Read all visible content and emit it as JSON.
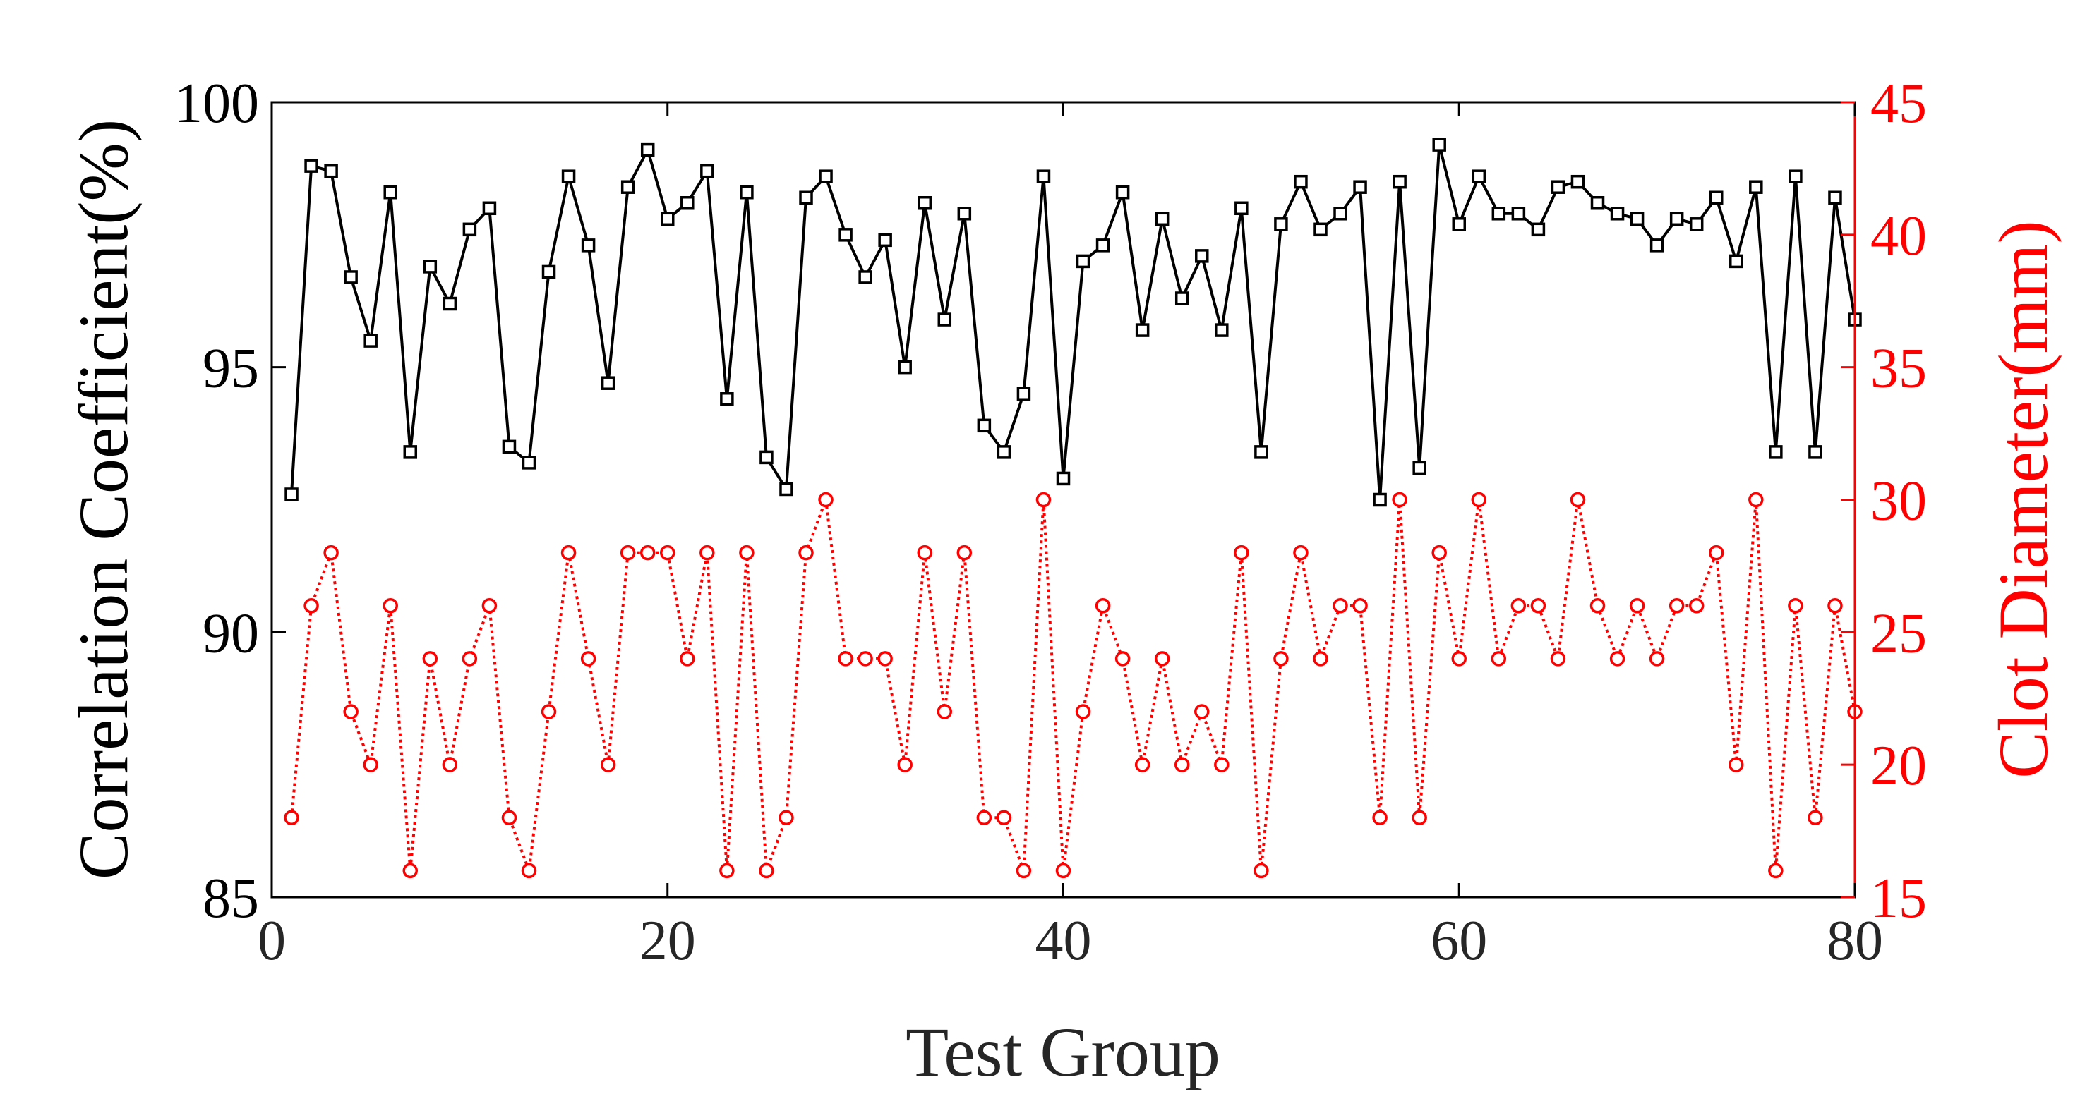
{
  "chart_data": {
    "type": "line",
    "xlabel": "Test Group",
    "ylabel_left": "Correlation Coefficient(%)",
    "ylabel_right": "Clot Diameter(mm)",
    "xlim": [
      0,
      80
    ],
    "ylim_left": [
      85,
      100
    ],
    "ylim_right": [
      15,
      45
    ],
    "x_ticks": [
      "0",
      "20",
      "40",
      "60",
      "80"
    ],
    "y_left_ticks": [
      "85",
      "90",
      "95",
      "100"
    ],
    "y_right_ticks": [
      "15",
      "20",
      "25",
      "30",
      "35",
      "40",
      "45"
    ],
    "x": [
      1,
      2,
      3,
      4,
      5,
      6,
      7,
      8,
      9,
      10,
      11,
      12,
      13,
      14,
      15,
      16,
      17,
      18,
      19,
      20,
      21,
      22,
      23,
      24,
      25,
      26,
      27,
      28,
      29,
      30,
      31,
      32,
      33,
      34,
      35,
      36,
      37,
      38,
      39,
      40,
      41,
      42,
      43,
      44,
      45,
      46,
      47,
      48,
      49,
      50,
      51,
      52,
      53,
      54,
      55,
      56,
      57,
      58,
      59,
      60,
      61,
      62,
      63,
      64,
      65,
      66,
      67,
      68,
      69,
      70,
      71,
      72,
      73,
      74,
      75,
      76,
      77,
      78,
      79,
      80
    ],
    "series": [
      {
        "name": "Correlation Coefficient",
        "axis": "left",
        "color": "#000000",
        "style": "solid",
        "marker": "square",
        "values": [
          92.6,
          98.8,
          98.7,
          96.7,
          95.5,
          98.3,
          93.4,
          96.9,
          96.2,
          97.6,
          98.0,
          93.5,
          93.2,
          96.8,
          98.6,
          97.3,
          94.7,
          98.4,
          99.1,
          97.8,
          98.1,
          98.7,
          94.4,
          98.3,
          93.3,
          92.7,
          98.2,
          98.6,
          97.5,
          96.7,
          97.4,
          95.0,
          98.1,
          95.9,
          97.9,
          93.9,
          93.4,
          94.5,
          98.6,
          92.9,
          97.0,
          97.3,
          98.3,
          95.7,
          97.8,
          96.3,
          97.1,
          95.7,
          98.0,
          93.4,
          97.7,
          98.5,
          97.6,
          97.9,
          98.4,
          92.5,
          98.5,
          93.1,
          99.2,
          97.7,
          98.6,
          97.9,
          97.9,
          97.6,
          98.4,
          98.5,
          98.1,
          97.9,
          97.8,
          97.3,
          97.8,
          97.7,
          98.2,
          97.0,
          98.4,
          93.4,
          98.6,
          93.4,
          98.2,
          95.9
        ]
      },
      {
        "name": "Clot Diameter",
        "axis": "right",
        "color": "#ff0000",
        "style": "dotted",
        "marker": "circle",
        "values": [
          18,
          26,
          28,
          22,
          20,
          26,
          16,
          24,
          20,
          24,
          26,
          18,
          16,
          22,
          28,
          24,
          20,
          28,
          28,
          28,
          24,
          28,
          16,
          28,
          16,
          18,
          28,
          30,
          24,
          24,
          24,
          20,
          28,
          22,
          28,
          18,
          18,
          16,
          30,
          16,
          22,
          26,
          24,
          20,
          24,
          20,
          22,
          20,
          28,
          16,
          24,
          28,
          24,
          26,
          26,
          18,
          30,
          18,
          28,
          24,
          30,
          24,
          26,
          26,
          24,
          30,
          26,
          24,
          26,
          24,
          26,
          26,
          28,
          20,
          30,
          16,
          26,
          18,
          26,
          22
        ]
      }
    ]
  }
}
